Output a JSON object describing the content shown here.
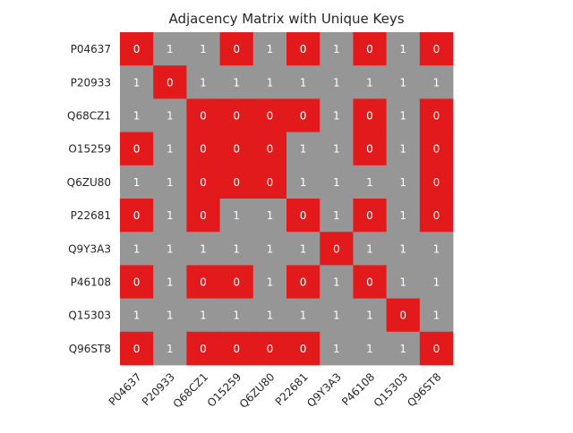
{
  "chart_data": {
    "type": "heatmap",
    "title": "Adjacency Matrix with Unique Keys",
    "xlabel": "",
    "ylabel": "",
    "rows": [
      "P04637",
      "P20933",
      "Q68CZ1",
      "O15259",
      "Q6ZU80",
      "P22681",
      "Q9Y3A3",
      "P46108",
      "Q15303",
      "Q96ST8"
    ],
    "columns": [
      "P04637",
      "P20933",
      "Q68CZ1",
      "O15259",
      "Q6ZU80",
      "P22681",
      "Q9Y3A3",
      "P46108",
      "Q15303",
      "Q96ST8"
    ],
    "values": [
      [
        0,
        1,
        1,
        0,
        1,
        0,
        1,
        0,
        1,
        0
      ],
      [
        1,
        0,
        1,
        1,
        1,
        1,
        1,
        1,
        1,
        1
      ],
      [
        1,
        1,
        0,
        0,
        0,
        0,
        1,
        0,
        1,
        0
      ],
      [
        0,
        1,
        0,
        0,
        0,
        1,
        1,
        0,
        1,
        0
      ],
      [
        1,
        1,
        0,
        0,
        0,
        1,
        1,
        1,
        1,
        0
      ],
      [
        0,
        1,
        0,
        1,
        1,
        0,
        1,
        0,
        1,
        0
      ],
      [
        1,
        1,
        1,
        1,
        1,
        1,
        0,
        1,
        1,
        1
      ],
      [
        0,
        1,
        0,
        0,
        1,
        0,
        1,
        0,
        1,
        1
      ],
      [
        1,
        1,
        1,
        1,
        1,
        1,
        1,
        1,
        0,
        1
      ],
      [
        0,
        1,
        0,
        0,
        0,
        0,
        1,
        1,
        1,
        0
      ]
    ],
    "colors": {
      "0": "#e31a1c",
      "1": "#969696"
    },
    "annotation_color": "#ffffff",
    "grid": false,
    "legend": "none"
  }
}
